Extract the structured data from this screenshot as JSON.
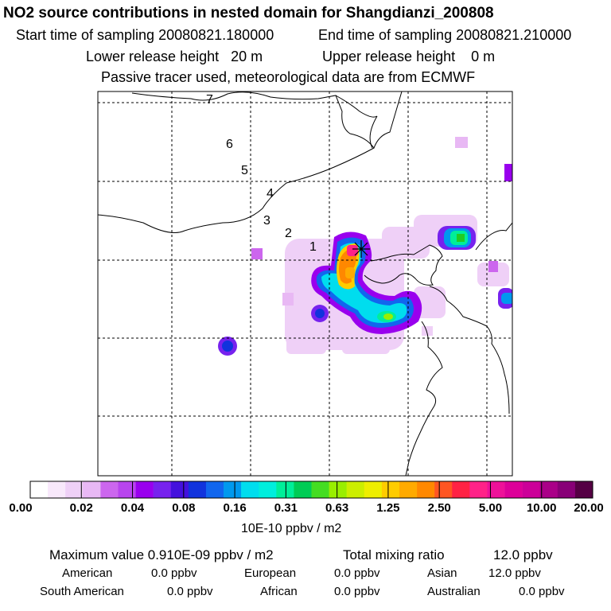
{
  "header": {
    "title": "NO2 source contributions in nested domain for Shangdianzi_200808",
    "start_time": "Start time of sampling 20080821.180000",
    "end_time": "End time of sampling 20080821.210000",
    "lower_release": "Lower release height   20 m",
    "upper_release": "Upper release height    0 m",
    "tracer_note": "Passive tracer used, meteorological data are from ECMWF"
  },
  "map": {
    "trajectory_labels": [
      "1",
      "2",
      "3",
      "4",
      "5",
      "6",
      "7"
    ],
    "receptor_marker": "receptor-star"
  },
  "colorbar": {
    "labels": [
      "0.00",
      "0.02",
      "0.04",
      "0.08",
      "0.16",
      "0.31",
      "0.63",
      "1.25",
      "2.50",
      "5.00",
      "10.00",
      "20.00"
    ],
    "colors": [
      "#ffffff",
      "#f8e8fb",
      "#efd0f7",
      "#e8b8f4",
      "#cc66ee",
      "#b844ee",
      "#9900ee",
      "#7722ee",
      "#4411dd",
      "#1133dd",
      "#1166ee",
      "#0099ee",
      "#00ddee",
      "#00eedd",
      "#00ee99",
      "#00cc55",
      "#44dd22",
      "#99ee00",
      "#ccee00",
      "#eeee00",
      "#ffcc00",
      "#ffaa00",
      "#ff8800",
      "#ff5522",
      "#ff2244",
      "#ff2288",
      "#ee1199",
      "#dd0099",
      "#cc0099",
      "#aa0088",
      "#880077",
      "#550044"
    ],
    "unit": "10E-10 ppbv / m2"
  },
  "footer": {
    "max_value": "Maximum value  0.910E-09 ppbv / m2",
    "total_mixing": "Total mixing ratio",
    "total_mixing_value": "12.0 ppbv",
    "regions": [
      {
        "name": "American",
        "value": "0.0 ppbv"
      },
      {
        "name": "European",
        "value": "0.0 ppbv"
      },
      {
        "name": "Asian",
        "value": "12.0 ppbv"
      },
      {
        "name": "South American",
        "value": "0.0 ppbv"
      },
      {
        "name": "African",
        "value": "0.0 ppbv"
      },
      {
        "name": "Australian",
        "value": "0.0 ppbv"
      }
    ]
  }
}
